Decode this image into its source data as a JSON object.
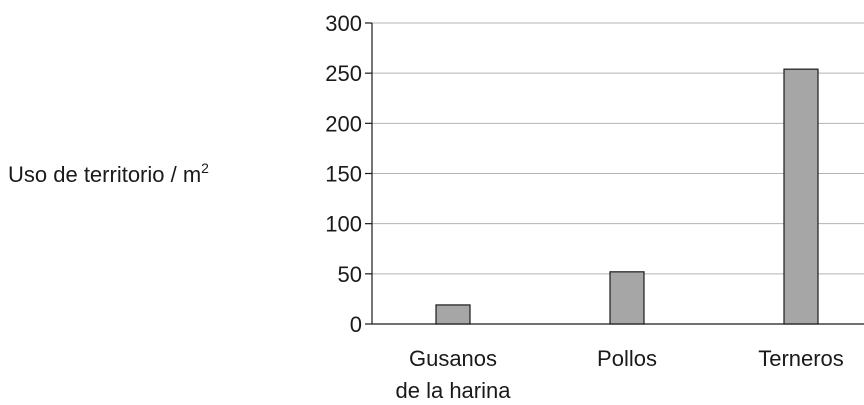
{
  "chart_data": {
    "type": "bar",
    "categories": [
      [
        "Gusanos",
        "de la harina"
      ],
      [
        "Pollos"
      ],
      [
        "Terneros"
      ]
    ],
    "values": [
      19,
      52,
      254
    ],
    "ylabel_text": "Uso de territorio / m",
    "ylabel_sup": "2",
    "ylim": [
      0,
      300
    ],
    "yticks": [
      0,
      50,
      100,
      150,
      200,
      250,
      300
    ],
    "grid": true,
    "bar_color": "#a6a6a6"
  }
}
